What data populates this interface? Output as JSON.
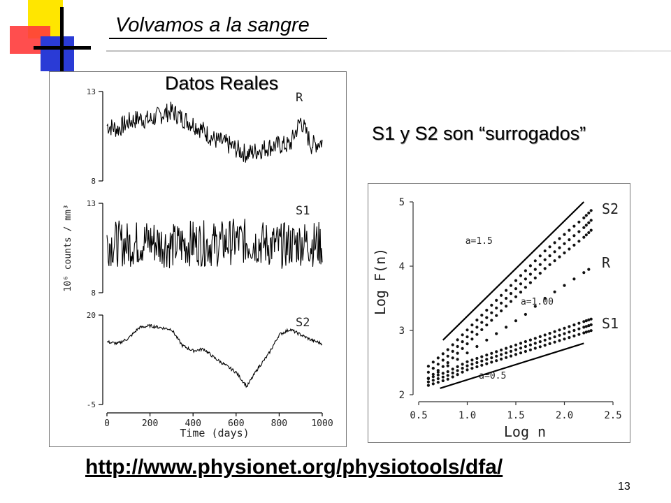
{
  "slide": {
    "title": "Volvamos a la sangre",
    "page_number": "13",
    "url": "http://www.physionet.org/physiotools/dfa/",
    "left_caption": "Datos Reales",
    "right_caption": "S1 y S2 son “surrogados”",
    "logo_colors": [
      "#ffe600",
      "#ff3333",
      "#2a3bd6",
      "#000000"
    ]
  },
  "chart_data": [
    {
      "type": "line",
      "title": "",
      "xlabel": "Time (days)",
      "ylabel": "10⁶ counts / mm³",
      "x_ticks": [
        "0",
        "200",
        "400",
        "600",
        "800",
        "1000"
      ],
      "xlim": [
        0,
        1000
      ],
      "panels": [
        {
          "name": "R",
          "ylim": [
            8,
            13
          ],
          "y_ticks": [
            "13",
            "8"
          ],
          "x": [
            0,
            50,
            100,
            150,
            200,
            250,
            300,
            350,
            400,
            450,
            500,
            550,
            600,
            650,
            700,
            750,
            800,
            850,
            900,
            950,
            1000
          ],
          "values": [
            11.1,
            10.9,
            11.3,
            11.5,
            11.4,
            11.7,
            11.9,
            11.5,
            11.2,
            10.8,
            10.3,
            10.1,
            9.8,
            9.5,
            9.7,
            9.9,
            10.0,
            10.0,
            11.4,
            10.0,
            10.2
          ]
        },
        {
          "name": "S1",
          "ylim": [
            8,
            13
          ],
          "y_ticks": [
            "13",
            "8"
          ],
          "x": [
            0,
            100,
            200,
            300,
            400,
            500,
            600,
            700,
            800,
            900,
            1000
          ],
          "values": [
            10.8,
            10.7,
            10.9,
            10.6,
            10.8,
            10.7,
            10.9,
            10.8,
            10.6,
            10.8,
            10.7
          ]
        },
        {
          "name": "S2",
          "ylim": [
            -5,
            20
          ],
          "y_ticks": [
            "20",
            "-5"
          ],
          "x": [
            0,
            50,
            100,
            150,
            200,
            250,
            300,
            350,
            400,
            450,
            500,
            550,
            600,
            650,
            700,
            750,
            800,
            850,
            900,
            950,
            1000
          ],
          "values": [
            12.5,
            12.0,
            13.5,
            16.5,
            17.0,
            16.5,
            16.0,
            11.5,
            10.0,
            10.5,
            8.0,
            6.0,
            4.0,
            0.0,
            5.0,
            9.0,
            14.5,
            16.0,
            14.5,
            13.0,
            12.0
          ]
        }
      ]
    },
    {
      "type": "scatter",
      "title": "",
      "xlabel": "Log n",
      "ylabel": "Log F(n)",
      "xlim": [
        0.5,
        2.5
      ],
      "ylim": [
        2,
        5
      ],
      "x_ticks": [
        "0.5",
        "1.0",
        "1.5",
        "2.0",
        "2.5"
      ],
      "y_ticks": [
        "2",
        "3",
        "4",
        "5"
      ],
      "series": [
        {
          "name": "S2",
          "x": [
            0.6,
            0.8,
            1.0,
            1.2,
            1.4,
            1.6,
            1.8,
            2.0,
            2.2,
            2.3
          ],
          "values": [
            2.35,
            2.6,
            2.9,
            3.2,
            3.5,
            3.8,
            4.1,
            4.35,
            4.6,
            4.75
          ]
        },
        {
          "name": "R",
          "x": [
            0.6,
            0.8,
            1.0,
            1.2,
            1.4,
            1.6,
            1.8,
            2.0,
            2.2,
            2.3
          ],
          "values": [
            2.25,
            2.45,
            2.65,
            2.85,
            3.05,
            3.25,
            3.5,
            3.7,
            3.9,
            4.0
          ]
        },
        {
          "name": "S1",
          "x": [
            0.6,
            0.8,
            1.0,
            1.2,
            1.4,
            1.6,
            1.8,
            2.0,
            2.2,
            2.3
          ],
          "values": [
            2.2,
            2.3,
            2.45,
            2.55,
            2.65,
            2.75,
            2.85,
            2.95,
            3.05,
            3.1
          ]
        }
      ],
      "reference_lines": [
        {
          "label": "a=1.5",
          "x": [
            0.75,
            2.2
          ],
          "values": [
            2.85,
            5.0
          ]
        },
        {
          "label": "a=1.00",
          "x": [],
          "values": []
        },
        {
          "label": "a=0.5",
          "x": [
            0.72,
            2.2
          ],
          "values": [
            2.1,
            2.8
          ]
        }
      ]
    }
  ]
}
